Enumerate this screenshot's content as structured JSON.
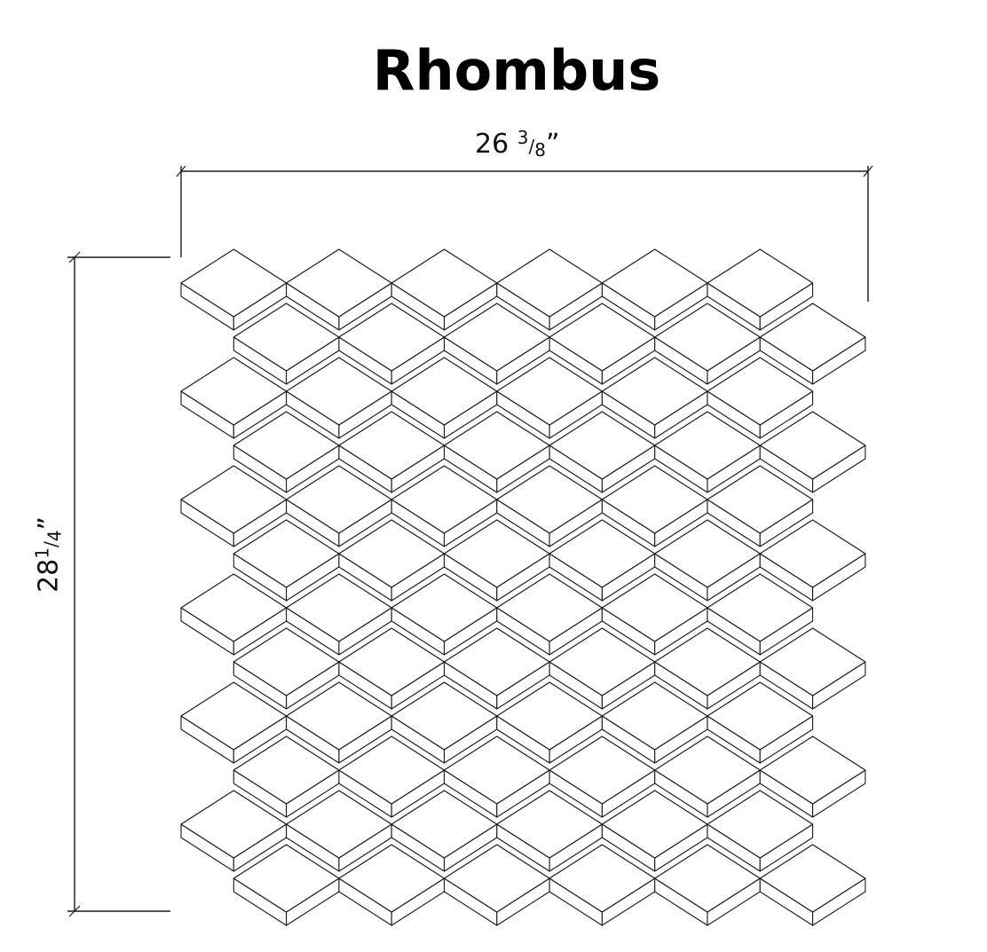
{
  "title": "Rhombus",
  "dimensions": {
    "width": {
      "whole": "26",
      "numerator": "3",
      "denominator": "8",
      "mark": "”"
    },
    "height": {
      "whole": "28",
      "numerator": "1",
      "denominator": "4",
      "mark": "”"
    }
  },
  "colors": {
    "line": "#1a1a1a",
    "background": "#ffffff"
  }
}
